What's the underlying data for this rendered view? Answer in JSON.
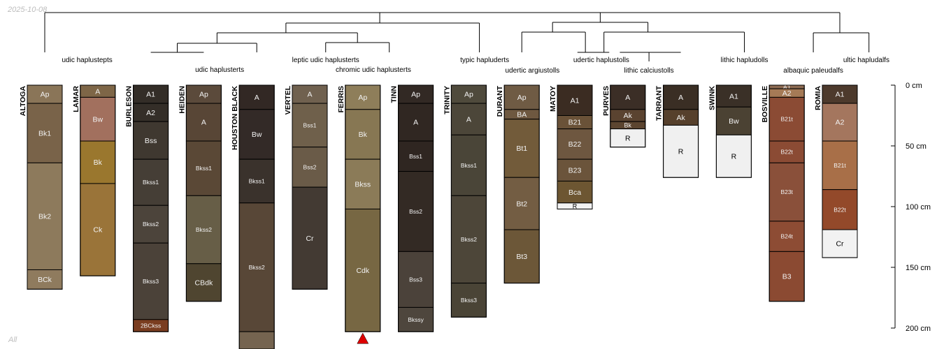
{
  "corner_date": "2025-10-08",
  "corner_label": "All",
  "depth_axis": {
    "unit": "cm",
    "max_depth": 210,
    "ticks": [
      0,
      50,
      100,
      150,
      200
    ]
  },
  "taxa": [
    {
      "id": "t_udic_haplustepts",
      "label": "udic haplustepts"
    },
    {
      "id": "t_udic_haplusterts",
      "label": "udic haplusterts"
    },
    {
      "id": "t_leptic",
      "label": "leptic udic haplusterts"
    },
    {
      "id": "t_chromic",
      "label": "chromic udic haplusterts"
    },
    {
      "id": "t_typic_hapluderts",
      "label": "typic hapluderts"
    },
    {
      "id": "t_udertic_argiustolls",
      "label": "udertic argiustolls"
    },
    {
      "id": "t_udertic_haplustolls",
      "label": "udertic haplustolls"
    },
    {
      "id": "t_lithic_calciustolls",
      "label": "lithic calciustolls"
    },
    {
      "id": "t_lithic_hapludolls",
      "label": "lithic hapludolls"
    },
    {
      "id": "t_albaquic",
      "label": "albaquic paleudalfs"
    },
    {
      "id": "t_ultic",
      "label": "ultic hapludalfs"
    }
  ],
  "profiles": [
    {
      "name": "ALTOGA",
      "horizons": [
        {
          "name": "Ap",
          "top": 0,
          "bottom": 15,
          "color": "#8a7558"
        },
        {
          "name": "Bk1",
          "top": 15,
          "bottom": 64,
          "color": "#796349"
        },
        {
          "name": "Bk2",
          "top": 64,
          "bottom": 152,
          "color": "#8d7a5c"
        },
        {
          "name": "BCk",
          "top": 152,
          "bottom": 168,
          "color": "#8f7b5e"
        }
      ]
    },
    {
      "name": "LAMAR",
      "horizons": [
        {
          "name": "A",
          "top": 0,
          "bottom": 10,
          "color": "#7e6647"
        },
        {
          "name": "Bw",
          "top": 10,
          "bottom": 46,
          "color": "#a2705e"
        },
        {
          "name": "Bk",
          "top": 46,
          "bottom": 81,
          "color": "#9a772e"
        },
        {
          "name": "Ck",
          "top": 81,
          "bottom": 157,
          "color": "#9a7439"
        }
      ]
    },
    {
      "name": "BURLESON",
      "horizons": [
        {
          "name": "A1",
          "top": 0,
          "bottom": 15,
          "color": "#332d27"
        },
        {
          "name": "A2",
          "top": 15,
          "bottom": 30,
          "color": "#342e28"
        },
        {
          "name": "Bss",
          "top": 30,
          "bottom": 61,
          "color": "#3f3830"
        },
        {
          "name": "Bkss1",
          "top": 61,
          "bottom": 99,
          "color": "#453e36"
        },
        {
          "name": "Bkss2",
          "top": 99,
          "bottom": 130,
          "color": "#4c443b"
        },
        {
          "name": "Bkss3",
          "top": 130,
          "bottom": 193,
          "color": "#4b4239"
        },
        {
          "name": "2BCkss",
          "top": 193,
          "bottom": 203,
          "color": "#7a3d20"
        }
      ]
    },
    {
      "name": "HEIDEN",
      "horizons": [
        {
          "name": "Ap",
          "top": 0,
          "bottom": 15,
          "color": "#5b4a3b"
        },
        {
          "name": "A",
          "top": 15,
          "bottom": 46,
          "color": "#584636"
        },
        {
          "name": "Bkss1",
          "top": 46,
          "bottom": 91,
          "color": "#5a4836"
        },
        {
          "name": "Bkss2",
          "top": 91,
          "bottom": 147,
          "color": "#675e47"
        },
        {
          "name": "CBdk",
          "top": 147,
          "bottom": 178,
          "color": "#4f4530"
        }
      ]
    },
    {
      "name": "HOUSTON BLACK",
      "horizons": [
        {
          "name": "A",
          "top": 0,
          "bottom": 20,
          "color": "#322824"
        },
        {
          "name": "Bw",
          "top": 20,
          "bottom": 61,
          "color": "#332a27"
        },
        {
          "name": "Bkss1",
          "top": 61,
          "bottom": 97,
          "color": "#3a322c"
        },
        {
          "name": "Bkss2",
          "top": 97,
          "bottom": 203,
          "color": "#584737"
        },
        {
          "name": "",
          "top": 203,
          "bottom": 218,
          "color": "#756450"
        }
      ]
    },
    {
      "name": "VERTEL",
      "horizons": [
        {
          "name": "A",
          "top": 0,
          "bottom": 15,
          "color": "#70614f"
        },
        {
          "name": "Bss1",
          "top": 15,
          "bottom": 51,
          "color": "#6f604b"
        },
        {
          "name": "Bss2",
          "top": 51,
          "bottom": 84,
          "color": "#6a5b48"
        },
        {
          "name": "Cr",
          "top": 84,
          "bottom": 168,
          "color": "#433a33"
        }
      ]
    },
    {
      "name": "FERRIS",
      "horizons": [
        {
          "name": "Ap",
          "top": 0,
          "bottom": 20,
          "color": "#8e7e5a"
        },
        {
          "name": "Bk",
          "top": 20,
          "bottom": 61,
          "color": "#877753"
        },
        {
          "name": "Bkss",
          "top": 61,
          "bottom": 102,
          "color": "#8b7b58"
        },
        {
          "name": "Cdk",
          "top": 102,
          "bottom": 203,
          "color": "#776743"
        }
      ]
    },
    {
      "name": "TINN",
      "horizons": [
        {
          "name": "Ap",
          "top": 0,
          "bottom": 15,
          "color": "#322924"
        },
        {
          "name": "A",
          "top": 15,
          "bottom": 46,
          "color": "#302722"
        },
        {
          "name": "Bss1",
          "top": 46,
          "bottom": 71,
          "color": "#2f2621"
        },
        {
          "name": "Bss2",
          "top": 71,
          "bottom": 137,
          "color": "#332a24"
        },
        {
          "name": "Bss3",
          "top": 137,
          "bottom": 183,
          "color": "#4b423a"
        },
        {
          "name": "Bkssy",
          "top": 183,
          "bottom": 203,
          "color": "#4e463d"
        }
      ]
    },
    {
      "name": "TRINITY",
      "horizons": [
        {
          "name": "Ap",
          "top": 0,
          "bottom": 15,
          "color": "#4f4a3c"
        },
        {
          "name": "A",
          "top": 15,
          "bottom": 41,
          "color": "#4c4639"
        },
        {
          "name": "Bkss1",
          "top": 41,
          "bottom": 91,
          "color": "#4a4538"
        },
        {
          "name": "Bkss2",
          "top": 91,
          "bottom": 163,
          "color": "#4d4639"
        },
        {
          "name": "Bkss3",
          "top": 163,
          "bottom": 191,
          "color": "#4a4436"
        }
      ]
    },
    {
      "name": "DURANT",
      "horizons": [
        {
          "name": "Ap",
          "top": 0,
          "bottom": 20,
          "color": "#6f5b44"
        },
        {
          "name": "BA",
          "top": 20,
          "bottom": 28,
          "color": "#6e5840"
        },
        {
          "name": "Bt1",
          "top": 28,
          "bottom": 76,
          "color": "#725b3a"
        },
        {
          "name": "Bt2",
          "top": 76,
          "bottom": 119,
          "color": "#735d43"
        },
        {
          "name": "Bt3",
          "top": 119,
          "bottom": 163,
          "color": "#6c5738"
        }
      ]
    },
    {
      "name": "MATOY",
      "horizons": [
        {
          "name": "A1",
          "top": 0,
          "bottom": 25,
          "color": "#3b2c22"
        },
        {
          "name": "B21",
          "top": 25,
          "bottom": 36,
          "color": "#6a5238"
        },
        {
          "name": "B22",
          "top": 36,
          "bottom": 61,
          "color": "#6e5740"
        },
        {
          "name": "B23",
          "top": 61,
          "bottom": 79,
          "color": "#6b543b"
        },
        {
          "name": "Bca",
          "top": 79,
          "bottom": 97,
          "color": "#6d5632"
        },
        {
          "name": "R",
          "top": 97,
          "bottom": 102,
          "color": "#f2f2f2"
        }
      ]
    },
    {
      "name": "PURVES",
      "horizons": [
        {
          "name": "A",
          "top": 0,
          "bottom": 20,
          "color": "#3b2e26"
        },
        {
          "name": "Ak",
          "top": 20,
          "bottom": 30,
          "color": "#5a4330"
        },
        {
          "name": "Bk",
          "top": 30,
          "bottom": 36,
          "color": "#5c4530"
        },
        {
          "name": "R",
          "top": 36,
          "bottom": 51,
          "color": "#f0f0f0"
        }
      ]
    },
    {
      "name": "TARRANT",
      "horizons": [
        {
          "name": "A",
          "top": 0,
          "bottom": 20,
          "color": "#3a2e24"
        },
        {
          "name": "Ak",
          "top": 20,
          "bottom": 33,
          "color": "#56402c"
        },
        {
          "name": "R",
          "top": 33,
          "bottom": 76,
          "color": "#f0f0f0"
        }
      ]
    },
    {
      "name": "SWINK",
      "horizons": [
        {
          "name": "A1",
          "top": 0,
          "bottom": 18,
          "color": "#3a3027"
        },
        {
          "name": "Bw",
          "top": 18,
          "bottom": 41,
          "color": "#4b4233"
        },
        {
          "name": "R",
          "top": 41,
          "bottom": 76,
          "color": "#f0f0f0"
        }
      ]
    },
    {
      "name": "BOSVILLE",
      "horizons": [
        {
          "name": "A1",
          "top": 0,
          "bottom": 3,
          "color": "#8c6a52"
        },
        {
          "name": "A2",
          "top": 3,
          "bottom": 10,
          "color": "#a57a56"
        },
        {
          "name": "B21t",
          "top": 10,
          "bottom": 46,
          "color": "#8b4b34"
        },
        {
          "name": "B22t",
          "top": 46,
          "bottom": 64,
          "color": "#8b4b34"
        },
        {
          "name": "B23t",
          "top": 64,
          "bottom": 112,
          "color": "#8a503a"
        },
        {
          "name": "B24t",
          "top": 112,
          "bottom": 137,
          "color": "#8d4c34"
        },
        {
          "name": "B3",
          "top": 137,
          "bottom": 178,
          "color": "#8b4a32"
        }
      ]
    },
    {
      "name": "ROMIA",
      "horizons": [
        {
          "name": "A1",
          "top": 0,
          "bottom": 15,
          "color": "#4d3a2c"
        },
        {
          "name": "A2",
          "top": 15,
          "bottom": 46,
          "color": "#a4765e"
        },
        {
          "name": "B21t",
          "top": 46,
          "bottom": 86,
          "color": "#a86f48"
        },
        {
          "name": "B22t",
          "top": 86,
          "bottom": 119,
          "color": "#93492a"
        },
        {
          "name": "Cr",
          "top": 119,
          "bottom": 142,
          "color": "#f2f2f2"
        }
      ]
    }
  ],
  "truncation_marker": {
    "profile": "FERRIS",
    "color": "#dd0000"
  }
}
